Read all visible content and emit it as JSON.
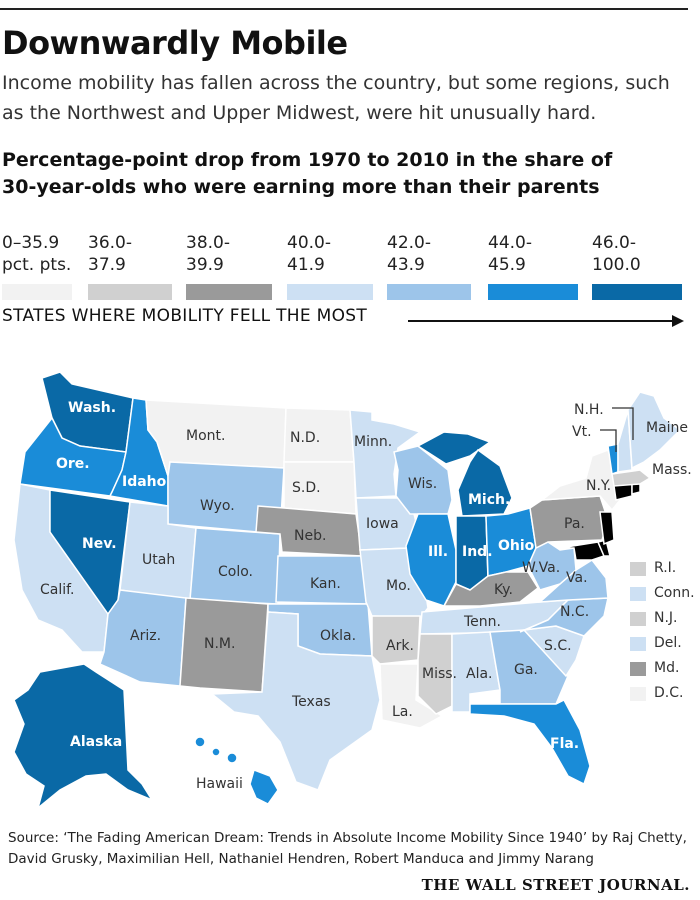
{
  "header": {
    "title": "Downwardly Mobile",
    "subtitle": "Income mobility has fallen across the country, but some regions, such as the Northwest and Upper Midwest, were hit unusually hard.",
    "chart_heading": "Percentage-point drop from 1970 to 2010 in the share of 30-year-olds who were earning more than their parents"
  },
  "legend": {
    "bins": [
      {
        "line1": "0–35.9",
        "line2": "pct. pts.",
        "color": "#f2f2f2"
      },
      {
        "line1": "36.0-",
        "line2": "37.9",
        "color": "#d0d0d0"
      },
      {
        "line1": "38.0-",
        "line2": "39.9",
        "color": "#9a9a9a"
      },
      {
        "line1": "40.0-",
        "line2": "41.9",
        "color": "#cde0f3"
      },
      {
        "line1": "42.0-",
        "line2": "43.9",
        "color": "#9dc5ea"
      },
      {
        "line1": "44.0-",
        "line2": "45.9",
        "color": "#1a8cd8"
      },
      {
        "line1": "46.0-",
        "line2": "100.0",
        "color": "#0a69a6"
      }
    ],
    "arrow_label": "STATES WHERE MOBILITY FELL THE MOST"
  },
  "map": {
    "states": {
      "Wash.": {
        "label": "Wash.",
        "bin": 6
      },
      "Ore.": {
        "label": "Ore.",
        "bin": 5
      },
      "Idaho": {
        "label": "Idaho",
        "bin": 5
      },
      "Mont.": {
        "label": "Mont.",
        "bin": 0
      },
      "Wyo.": {
        "label": "Wyo.",
        "bin": 4
      },
      "Calif.": {
        "label": "Calif.",
        "bin": 3
      },
      "Nev.": {
        "label": "Nev.",
        "bin": 6
      },
      "Utah": {
        "label": "Utah",
        "bin": 3
      },
      "Colo.": {
        "label": "Colo.",
        "bin": 4
      },
      "Ariz.": {
        "label": "Ariz.",
        "bin": 4
      },
      "N.M.": {
        "label": "N.M.",
        "bin": 2
      },
      "N.D.": {
        "label": "N.D.",
        "bin": 0
      },
      "S.D.": {
        "label": "S.D.",
        "bin": 0
      },
      "Neb.": {
        "label": "Neb.",
        "bin": 2
      },
      "Kan.": {
        "label": "Kan.",
        "bin": 4
      },
      "Okla.": {
        "label": "Okla.",
        "bin": 4
      },
      "Texas": {
        "label": "Texas",
        "bin": 3
      },
      "Minn.": {
        "label": "Minn.",
        "bin": 3
      },
      "Iowa": {
        "label": "Iowa",
        "bin": 3
      },
      "Mo.": {
        "label": "Mo.",
        "bin": 3
      },
      "Ark.": {
        "label": "Ark.",
        "bin": 1
      },
      "La.": {
        "label": "La.",
        "bin": 0
      },
      "Wis.": {
        "label": "Wis.",
        "bin": 4
      },
      "Ill.": {
        "label": "Ill.",
        "bin": 5
      },
      "Mich.": {
        "label": "Mich.",
        "bin": 6
      },
      "Ind.": {
        "label": "Ind.",
        "bin": 6
      },
      "Ohio": {
        "label": "Ohio",
        "bin": 5
      },
      "Ky.": {
        "label": "Ky.",
        "bin": 2
      },
      "Tenn.": {
        "label": "Tenn.",
        "bin": 3
      },
      "Miss.": {
        "label": "Miss.",
        "bin": 1
      },
      "Ala.": {
        "label": "Ala.",
        "bin": 3
      },
      "Ga.": {
        "label": "Ga.",
        "bin": 4
      },
      "Fla.": {
        "label": "Fla.",
        "bin": 5
      },
      "S.C.": {
        "label": "S.C.",
        "bin": 3
      },
      "N.C.": {
        "label": "N.C.",
        "bin": 4
      },
      "Va.": {
        "label": "Va.",
        "bin": 4
      },
      "W.Va.": {
        "label": "W.Va.",
        "bin": 4
      },
      "Pa.": {
        "label": "Pa.",
        "bin": 2
      },
      "N.Y.": {
        "label": "N.Y.",
        "bin": 0
      },
      "Vt.": {
        "label": "Vt.",
        "bin": 5
      },
      "N.H.": {
        "label": "N.H.",
        "bin": 3
      },
      "Maine": {
        "label": "Maine",
        "bin": 3
      },
      "Mass.": {
        "label": "Mass.",
        "bin": 1
      },
      "Alaska": {
        "label": "Alaska",
        "bin": 6
      },
      "Hawaii": {
        "label": "Hawaii",
        "bin": 5
      }
    },
    "small_states": [
      {
        "label": "R.I.",
        "bin": 1
      },
      {
        "label": "Conn.",
        "bin": 3
      },
      {
        "label": "N.J.",
        "bin": 1
      },
      {
        "label": "Del.",
        "bin": 3
      },
      {
        "label": "Md.",
        "bin": 2
      },
      {
        "label": "D.C.",
        "bin": 0
      }
    ]
  },
  "footer": {
    "source": "Source: ‘The Fading American Dream: Trends in Absolute Income Mobility Since 1940’ by Raj Chetty, David Grusky, Maximilian Hell, Nathaniel Hendren, Robert Manduca and Jimmy Narang",
    "brand": "THE WALL STREET JOURNAL."
  }
}
